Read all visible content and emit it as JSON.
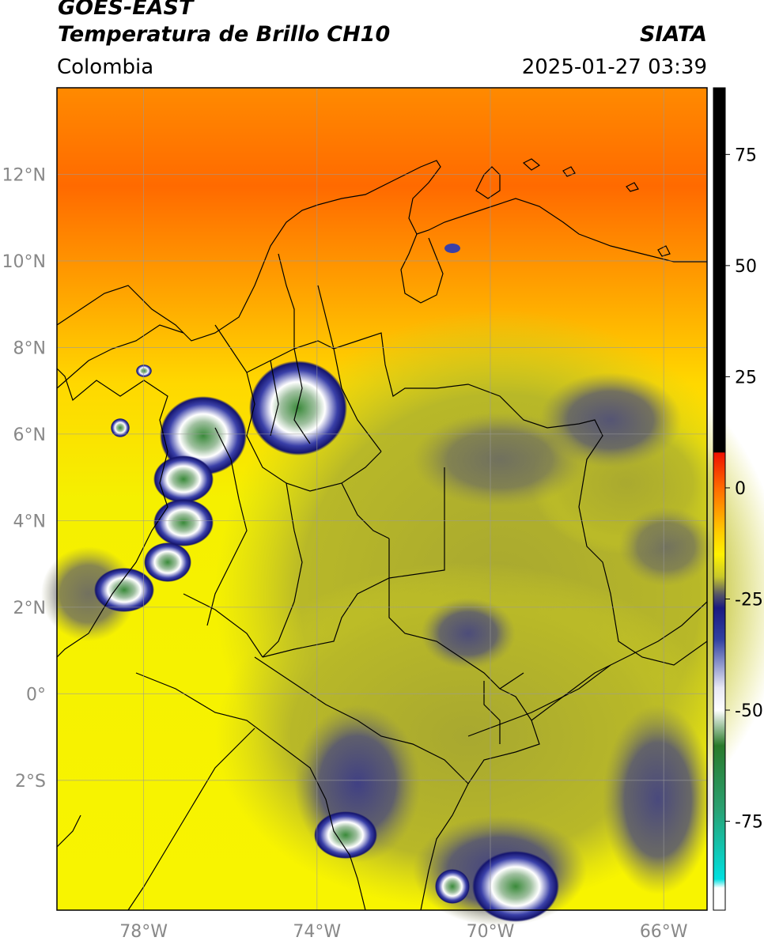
{
  "header": {
    "line1": "GOES-EAST",
    "line2": "Temperatura de Brillo CH10",
    "source": "SIATA",
    "region": "Colombia",
    "timestamp": "2025-01-27 03:39"
  },
  "axes": {
    "lat_labels": [
      "12°N",
      "10°N",
      "8°N",
      "6°N",
      "4°N",
      "2°N",
      "0°",
      "2°S"
    ],
    "lon_labels": [
      "78°W",
      "74°W",
      "70°W",
      "66°W"
    ],
    "lon_range": [
      -80,
      -65
    ],
    "lat_range": [
      -5,
      14
    ]
  },
  "colorbar": {
    "labels": [
      "75",
      "50",
      "25",
      "0",
      "-25",
      "-50",
      "-75"
    ],
    "values": [
      75,
      50,
      25,
      0,
      -25,
      -50,
      -75
    ],
    "range": [
      -95,
      90
    ],
    "stops": [
      {
        "v": 90,
        "color": "#000000"
      },
      {
        "v": 8,
        "color": "#000000"
      },
      {
        "v": 7.9,
        "color": "#ee1100"
      },
      {
        "v": 0,
        "color": "#ff6a00"
      },
      {
        "v": -10,
        "color": "#ffcc00"
      },
      {
        "v": -15,
        "color": "#fff200"
      },
      {
        "v": -20,
        "color": "#c8c82a"
      },
      {
        "v": -24,
        "color": "#555566"
      },
      {
        "v": -27,
        "color": "#1a1a80"
      },
      {
        "v": -34,
        "color": "#3040a0"
      },
      {
        "v": -45,
        "color": "#e8e8f4"
      },
      {
        "v": -50,
        "color": "#ffffff"
      },
      {
        "v": -58,
        "color": "#2a7a2a"
      },
      {
        "v": -72,
        "color": "#2aa070"
      },
      {
        "v": -88,
        "color": "#00e0e0"
      },
      {
        "v": -90,
        "color": "#ffffff"
      },
      {
        "v": -95,
        "color": "#ffffff"
      }
    ]
  }
}
